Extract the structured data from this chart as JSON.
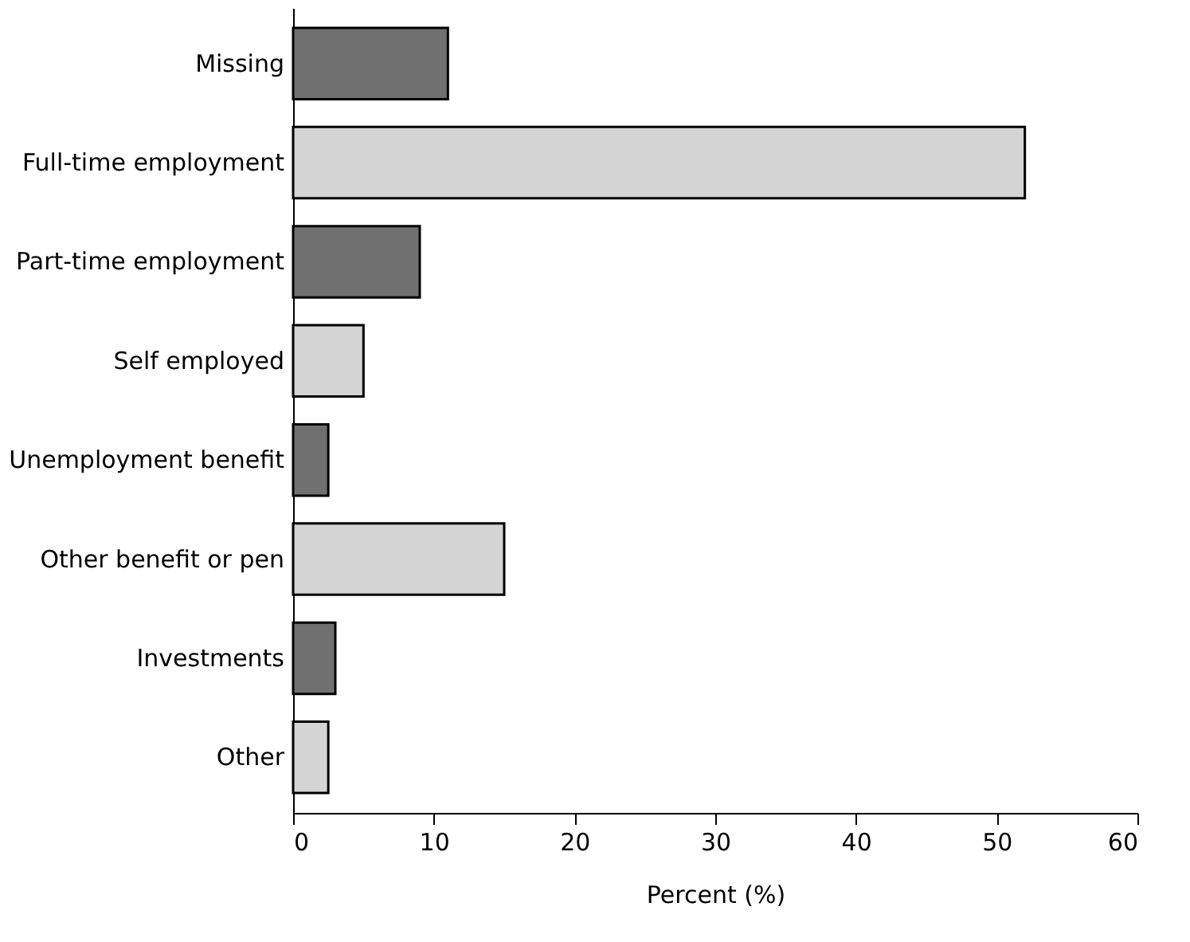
{
  "chart_data": {
    "type": "bar",
    "orientation": "horizontal",
    "xlabel": "Percent (%)",
    "categories": [
      "Missing",
      "Full-time employment",
      "Part-time employment",
      "Self employed",
      "Unemployment benefit",
      "Other benefit or pen",
      "Investments",
      "Other"
    ],
    "values": [
      11,
      52,
      9,
      5,
      2.5,
      15,
      3,
      2.5
    ],
    "colors": [
      "#707070",
      "#d4d4d4",
      "#707070",
      "#d4d4d4",
      "#707070",
      "#d4d4d4",
      "#707070",
      "#d4d4d4"
    ],
    "xlim": [
      0,
      60
    ],
    "xticks": [
      0,
      10,
      20,
      30,
      40,
      50,
      60
    ]
  }
}
